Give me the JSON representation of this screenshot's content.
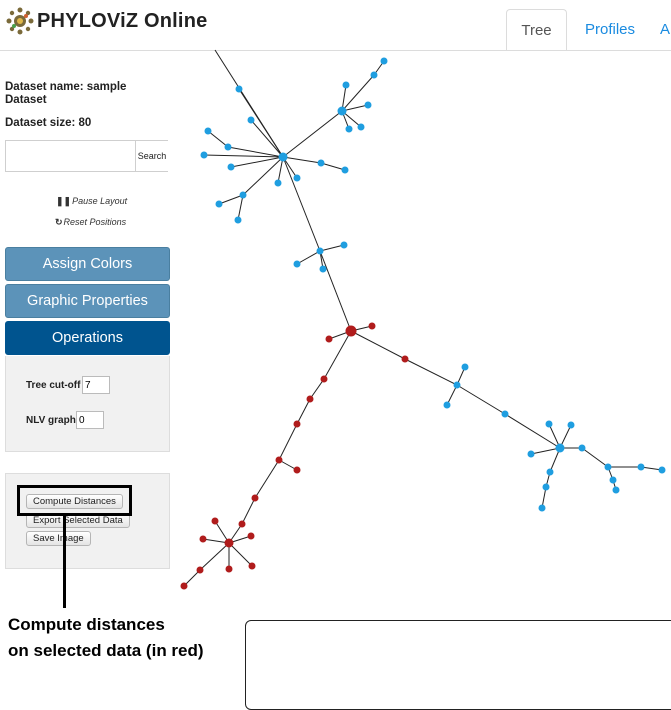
{
  "app": {
    "title": "PHYLOViZ Online",
    "logo_icon": "phyloviz-logo-icon"
  },
  "tabs": [
    {
      "label": "Tree",
      "active": true
    },
    {
      "label": "Profiles",
      "active": false
    },
    {
      "label": "A",
      "active": false
    }
  ],
  "sidebar": {
    "dataset_name_line1": "Dataset name: sample",
    "dataset_name_line2": "Dataset",
    "dataset_size": "Dataset size: 80",
    "search": {
      "value": "",
      "button_label": "Search"
    },
    "pause_layout": "Pause Layout",
    "reset_positions": "Reset Positions",
    "assign_colors": "Assign Colors",
    "graphic_properties": "Graphic Properties",
    "operations": "Operations",
    "tree_cutoff_label": "Tree cut-off",
    "tree_cutoff_value": "7",
    "nlv_graph_label": "NLV graph",
    "nlv_graph_value": "0",
    "compute_distances": "Compute Distances",
    "export_selected": "Export Selected Data",
    "save_image": "Save Image"
  },
  "annotation": {
    "line1": "Compute distances",
    "line2": "on selected data (in red)"
  },
  "colors": {
    "accent": "#1a8be0",
    "node_blue": "#1f9ee0",
    "node_red": "#b01c1c",
    "button_light": "#5c93b9",
    "button_dark": "#00548f"
  }
}
